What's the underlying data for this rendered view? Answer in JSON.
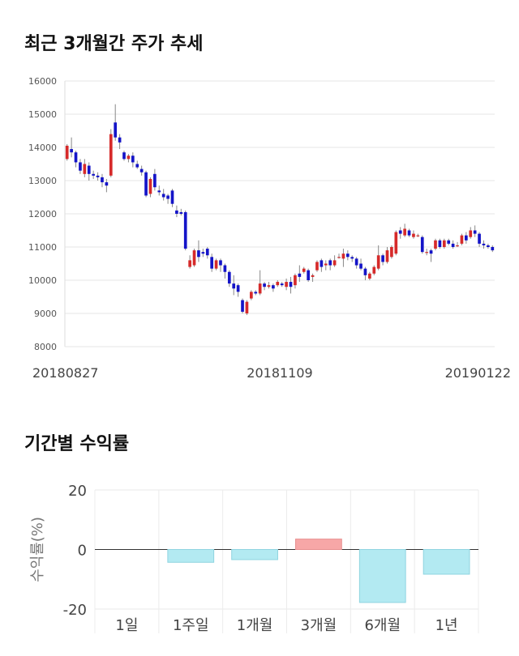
{
  "page": {
    "title_price": "최근 3개월간 주가 추세",
    "title_return": "기간별 수익률"
  },
  "chart_data": [
    {
      "type": "candlestick",
      "title": "최근 3개월간 주가 추세",
      "y_ticks": [
        "16000",
        "15000",
        "14000",
        "13000",
        "12000",
        "11000",
        "10000",
        "9000",
        "8000"
      ],
      "ylim": [
        8000,
        16000
      ],
      "x_tick_labels": [
        "20180827",
        "20181109",
        "20190122"
      ],
      "grid": true,
      "colors": {
        "up": "#d62a2a",
        "down": "#1414c8",
        "wick": "#888888"
      },
      "candles": [
        [
          13650,
          14050,
          13600,
          14100
        ],
        [
          13950,
          13850,
          13700,
          14300
        ],
        [
          13850,
          13550,
          13400,
          13900
        ],
        [
          13550,
          13300,
          13200,
          13650
        ],
        [
          13200,
          13500,
          13100,
          13650
        ],
        [
          13450,
          13200,
          13000,
          13550
        ],
        [
          13200,
          13150,
          13050,
          13300
        ],
        [
          13150,
          13100,
          13000,
          13250
        ],
        [
          13100,
          12950,
          12800,
          13200
        ],
        [
          12950,
          12850,
          12650,
          13050
        ],
        [
          13150,
          14400,
          13100,
          14550
        ],
        [
          14750,
          14300,
          14200,
          15300
        ],
        [
          14300,
          14150,
          13950,
          14400
        ],
        [
          13850,
          13650,
          13600,
          13900
        ],
        [
          13650,
          13750,
          13550,
          13800
        ],
        [
          13750,
          13550,
          13400,
          13850
        ],
        [
          13500,
          13400,
          13350,
          13600
        ],
        [
          13350,
          13250,
          13150,
          13450
        ],
        [
          13250,
          12550,
          12500,
          13300
        ],
        [
          12600,
          13050,
          12500,
          13100
        ],
        [
          13200,
          12800,
          12700,
          13350
        ],
        [
          12700,
          12650,
          12550,
          12850
        ],
        [
          12600,
          12500,
          12400,
          12750
        ],
        [
          12550,
          12450,
          12300,
          12600
        ],
        [
          12700,
          12300,
          12200,
          12750
        ],
        [
          12100,
          12000,
          11900,
          12250
        ],
        [
          12050,
          12000,
          11950,
          12150
        ],
        [
          12050,
          10950,
          10900,
          12100
        ],
        [
          10400,
          10600,
          10350,
          10750
        ],
        [
          10450,
          10900,
          10400,
          10950
        ],
        [
          10900,
          10700,
          10550,
          11200
        ],
        [
          10850,
          10800,
          10700,
          10950
        ],
        [
          10950,
          10750,
          10650,
          11000
        ],
        [
          10700,
          10350,
          10250,
          10800
        ],
        [
          10350,
          10600,
          10300,
          10650
        ],
        [
          10600,
          10450,
          10250,
          10650
        ],
        [
          10450,
          10250,
          10050,
          10500
        ],
        [
          10250,
          9900,
          9800,
          10300
        ],
        [
          9900,
          9750,
          9550,
          10150
        ],
        [
          9850,
          9650,
          9500,
          9900
        ],
        [
          9400,
          9050,
          9000,
          9450
        ],
        [
          9000,
          9350,
          8950,
          9400
        ],
        [
          9450,
          9650,
          9400,
          9700
        ],
        [
          9650,
          9600,
          9550,
          9700
        ],
        [
          9600,
          9900,
          9550,
          10300
        ],
        [
          9900,
          9800,
          9700,
          9950
        ],
        [
          9800,
          9850,
          9750,
          9950
        ],
        [
          9850,
          9750,
          9650,
          9900
        ],
        [
          9850,
          9950,
          9800,
          10000
        ],
        [
          9900,
          9850,
          9800,
          9950
        ],
        [
          9800,
          9950,
          9700,
          10050
        ],
        [
          9950,
          9800,
          9600,
          10100
        ],
        [
          9850,
          10150,
          9750,
          10200
        ],
        [
          10200,
          10100,
          9950,
          10450
        ],
        [
          10250,
          10350,
          10200,
          10400
        ],
        [
          10300,
          10000,
          9950,
          10350
        ],
        [
          10100,
          10150,
          9950,
          10200
        ],
        [
          10300,
          10550,
          10250,
          10600
        ],
        [
          10600,
          10400,
          10250,
          10650
        ],
        [
          10450,
          10500,
          10300,
          10600
        ],
        [
          10600,
          10450,
          10300,
          10650
        ],
        [
          10450,
          10600,
          10400,
          10750
        ],
        [
          10700,
          10700,
          10650,
          10800
        ],
        [
          10650,
          10800,
          10400,
          10950
        ],
        [
          10800,
          10700,
          10600,
          10900
        ],
        [
          10700,
          10650,
          10550,
          10750
        ],
        [
          10650,
          10450,
          10350,
          10700
        ],
        [
          10500,
          10350,
          10300,
          10650
        ],
        [
          10350,
          10150,
          10000,
          10400
        ],
        [
          10050,
          10200,
          10000,
          10250
        ],
        [
          10200,
          10400,
          10150,
          10450
        ],
        [
          10350,
          10750,
          10300,
          11050
        ],
        [
          10750,
          10550,
          10450,
          10800
        ],
        [
          10550,
          10900,
          10500,
          11000
        ],
        [
          10700,
          11000,
          10650,
          11050
        ],
        [
          10800,
          11450,
          10750,
          11500
        ],
        [
          11500,
          11400,
          11250,
          11600
        ],
        [
          11350,
          11550,
          11300,
          11700
        ],
        [
          11500,
          11350,
          11300,
          11550
        ],
        [
          11300,
          11400,
          11250,
          11500
        ],
        [
          11350,
          11350,
          11300,
          11400
        ],
        [
          11300,
          10850,
          10800,
          11350
        ],
        [
          10850,
          10850,
          10750,
          10950
        ],
        [
          10900,
          10800,
          10550,
          10950
        ],
        [
          10950,
          11200,
          10900,
          11250
        ],
        [
          11200,
          11000,
          10950,
          11250
        ],
        [
          11000,
          11200,
          10950,
          11250
        ],
        [
          11200,
          11100,
          11050,
          11250
        ],
        [
          11100,
          11000,
          10950,
          11200
        ],
        [
          11050,
          11050,
          11000,
          11150
        ],
        [
          11100,
          11350,
          11050,
          11400
        ],
        [
          11350,
          11200,
          11100,
          11450
        ],
        [
          11300,
          11500,
          11250,
          11600
        ],
        [
          11500,
          11400,
          11300,
          11650
        ],
        [
          11400,
          11100,
          11000,
          11450
        ],
        [
          11100,
          11050,
          10950,
          11200
        ],
        [
          11050,
          11000,
          10950,
          11100
        ],
        [
          11000,
          10900,
          10850,
          11050
        ]
      ]
    },
    {
      "type": "bar",
      "title": "기간별 수익률",
      "ylabel": "수익률(%)",
      "categories": [
        "1일",
        "1주일",
        "1개월",
        "3개월",
        "6개월",
        "1년"
      ],
      "values": [
        0.0,
        -4.3,
        -3.4,
        3.5,
        -17.8,
        -8.3
      ],
      "y_ticks": [
        "20",
        "0",
        "-20"
      ],
      "ylim": [
        -20,
        20
      ],
      "colors": {
        "positive": "#f7a7a7",
        "negative": "#b3eaf2"
      },
      "grid": true
    }
  ]
}
